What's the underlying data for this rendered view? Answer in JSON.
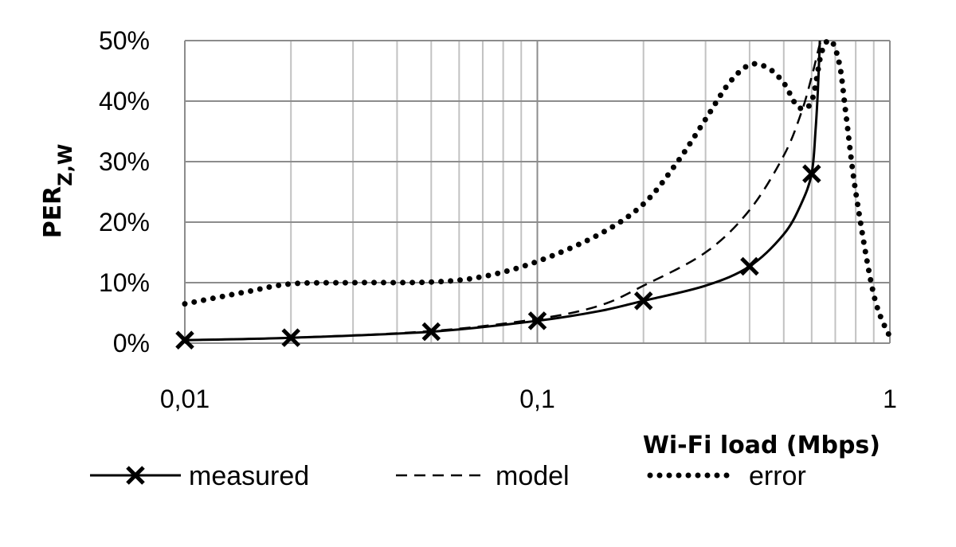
{
  "chart_data": {
    "type": "line",
    "xlabel": "Wi-Fi load (Mbps)",
    "ylabel": {
      "main": "PER",
      "sub": "Z,W"
    },
    "x_scale": "log",
    "xlim": [
      0.01,
      1
    ],
    "ylim": [
      0,
      50
    ],
    "x_ticks": [
      "0,01",
      "0,1",
      "1"
    ],
    "y_ticks": [
      "0%",
      "10%",
      "20%",
      "30%",
      "40%",
      "50%"
    ],
    "grid": true,
    "legend_position": "bottom",
    "series": [
      {
        "name": "measured",
        "style": "solid",
        "marker": "x",
        "color": "#000000",
        "markers": [
          [
            0.01,
            0.5
          ],
          [
            0.02,
            0.9
          ],
          [
            0.05,
            1.9
          ],
          [
            0.1,
            3.7
          ],
          [
            0.2,
            7.0
          ],
          [
            0.4,
            12.7
          ],
          [
            0.6,
            28.0
          ]
        ],
        "points": [
          [
            0.01,
            0.5
          ],
          [
            0.02,
            0.9
          ],
          [
            0.05,
            1.9
          ],
          [
            0.1,
            3.7
          ],
          [
            0.15,
            5.3
          ],
          [
            0.2,
            7.0
          ],
          [
            0.3,
            9.5
          ],
          [
            0.4,
            12.7
          ],
          [
            0.5,
            18.0
          ],
          [
            0.56,
            23.0
          ],
          [
            0.6,
            28.0
          ],
          [
            0.615,
            35.0
          ],
          [
            0.625,
            42.0
          ],
          [
            0.633,
            50.0
          ]
        ]
      },
      {
        "name": "model",
        "style": "dashed",
        "color": "#000000",
        "points": [
          [
            0.01,
            0.5
          ],
          [
            0.02,
            0.9
          ],
          [
            0.05,
            2.0
          ],
          [
            0.1,
            4.0
          ],
          [
            0.15,
            6.2
          ],
          [
            0.2,
            9.5
          ],
          [
            0.3,
            15.0
          ],
          [
            0.4,
            22.0
          ],
          [
            0.5,
            31.0
          ],
          [
            0.56,
            38.0
          ],
          [
            0.6,
            44.0
          ],
          [
            0.63,
            49.0
          ],
          [
            0.64,
            50.0
          ]
        ]
      },
      {
        "name": "error",
        "style": "dotted",
        "color": "#000000",
        "points": [
          [
            0.01,
            6.5
          ],
          [
            0.015,
            8.5
          ],
          [
            0.02,
            9.8
          ],
          [
            0.03,
            10.0
          ],
          [
            0.05,
            10.1
          ],
          [
            0.07,
            11.0
          ],
          [
            0.1,
            13.5
          ],
          [
            0.15,
            18.0
          ],
          [
            0.2,
            23.0
          ],
          [
            0.25,
            30.0
          ],
          [
            0.3,
            37.0
          ],
          [
            0.35,
            43.0
          ],
          [
            0.4,
            46.0
          ],
          [
            0.45,
            45.5
          ],
          [
            0.5,
            43.0
          ],
          [
            0.55,
            39.0
          ],
          [
            0.6,
            40.0
          ],
          [
            0.64,
            48.0
          ],
          [
            0.68,
            50.0
          ],
          [
            0.72,
            46.0
          ],
          [
            0.75,
            38.0
          ],
          [
            0.8,
            25.0
          ],
          [
            0.9,
            8.0
          ],
          [
            1.0,
            1.0
          ]
        ]
      }
    ]
  }
}
